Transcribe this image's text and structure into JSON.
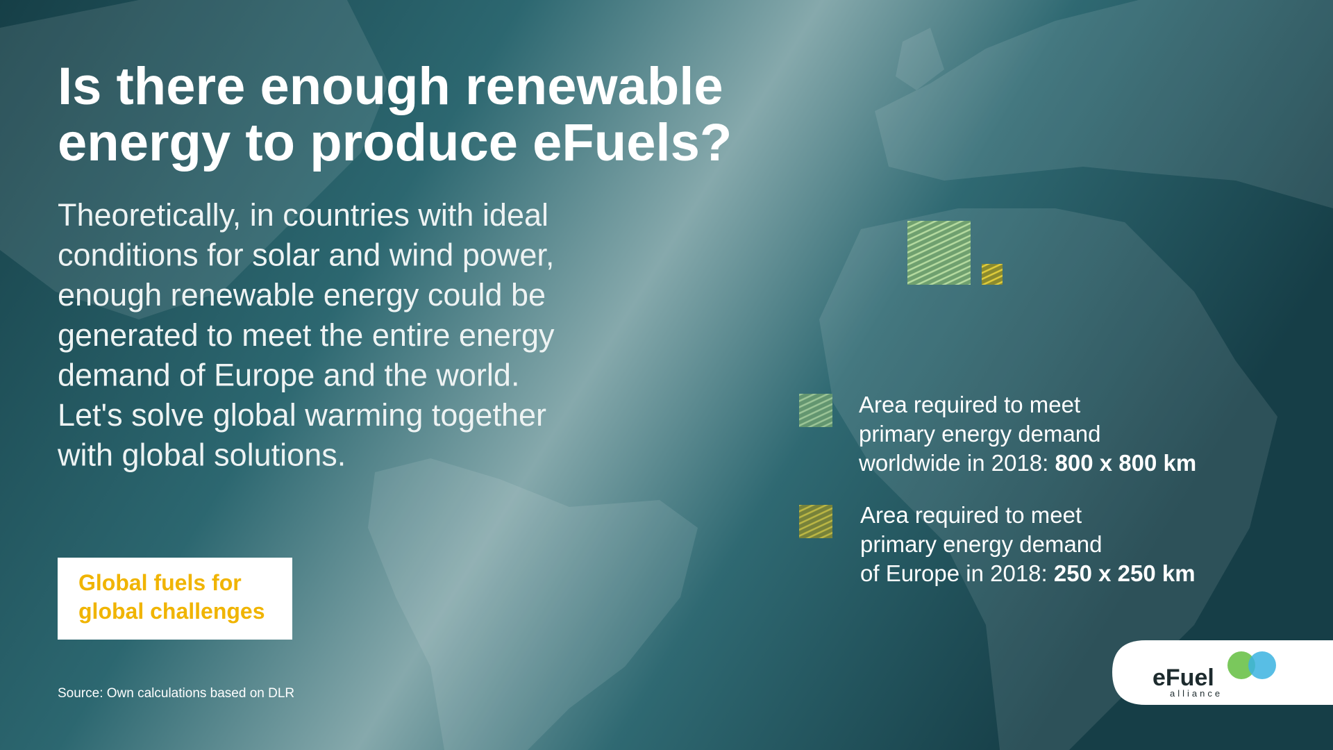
{
  "header": {
    "title_lines": [
      "Is there enough renewable",
      "energy to produce eFuels?"
    ]
  },
  "body": {
    "lines": [
      "Theoretically, in countries with ideal",
      "conditions for solar and wind power,",
      "enough renewable energy could be",
      "generated to meet the entire energy",
      "demand of Europe and the world.",
      "Let's solve global warming together",
      "with global solutions."
    ]
  },
  "tagline": {
    "lines": [
      "Global fuels for",
      "global challenges"
    ]
  },
  "source": "Source: Own calculations based on DLR",
  "legend": [
    {
      "lines": [
        "Area required to meet",
        "primary energy demand",
        "worldwide in 2018: "
      ],
      "highlight": "800 x 800 km"
    },
    {
      "lines": [
        "Area required to meet",
        "primary energy demand",
        "of Europe in 2018: "
      ],
      "highlight": "250 x 250 km"
    }
  ],
  "logo": {
    "name": "eFuel",
    "sub": "alliance"
  }
}
